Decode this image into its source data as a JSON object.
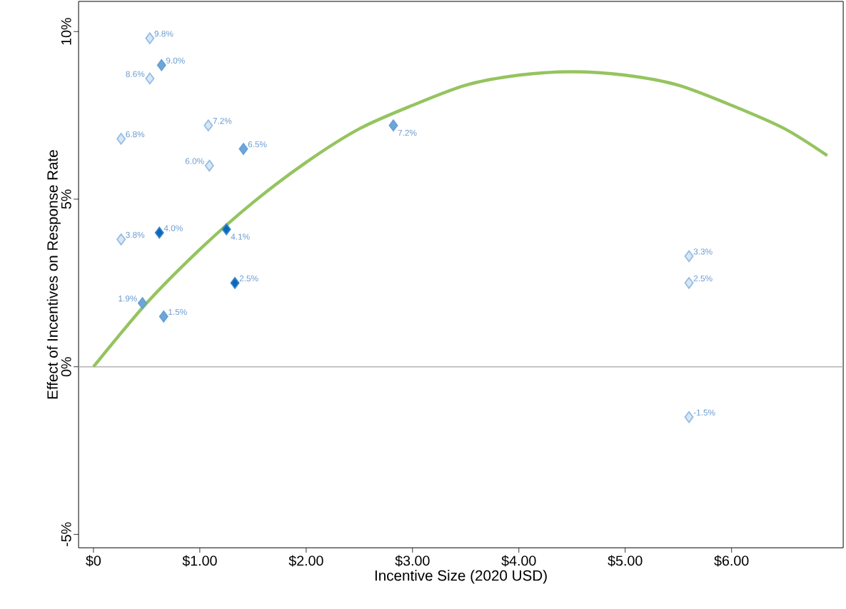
{
  "chart_data": {
    "type": "scatter",
    "xlabel": "Incentive Size (2020 USD)",
    "ylabel": "Effect of Incentives on Response Rate",
    "xlim": [
      -0.14,
      7.05
    ],
    "ylim": [
      -5.4,
      10.9
    ],
    "xticks": [
      {
        "value": 0,
        "label": "$0"
      },
      {
        "value": 1,
        "label": "$1.00"
      },
      {
        "value": 2,
        "label": "$2.00"
      },
      {
        "value": 3,
        "label": "$3.00"
      },
      {
        "value": 4,
        "label": "$4.00"
      },
      {
        "value": 5,
        "label": "$5.00"
      },
      {
        "value": 6,
        "label": "$6.00"
      }
    ],
    "yticks": [
      {
        "value": -5,
        "label": "-5%"
      },
      {
        "value": 0,
        "label": "0%"
      },
      {
        "value": 5,
        "label": "5%"
      },
      {
        "value": 10,
        "label": "10%"
      }
    ],
    "marker": "diamond",
    "ref_lines": [
      {
        "axis": "y",
        "value": 0,
        "color": "#b3b3b3"
      }
    ],
    "series": [
      {
        "color": "#d9e7f5",
        "x": [
          0.53,
          0.53,
          0.26,
          1.08,
          1.09,
          0.26,
          5.6,
          5.6,
          5.6
        ],
        "values": [
          9.8,
          8.6,
          6.8,
          7.2,
          6.0,
          3.8,
          3.3,
          2.5,
          -1.5
        ],
        "value_labels": [
          "9.8%",
          "8.6%",
          "6.8%",
          "7.2%",
          "6.0%",
          "3.8%",
          "3.3%",
          "2.5%",
          "-1.5%"
        ]
      },
      {
        "color": "#6fa6d8",
        "x": [
          0.64,
          1.41,
          2.82,
          0.46,
          0.66
        ],
        "values": [
          9.0,
          6.5,
          7.2,
          1.9,
          1.5
        ],
        "value_labels": [
          "9.0%",
          "6.5%",
          "7.2%",
          "1.9%",
          "1.5%"
        ]
      },
      {
        "color": "#0a68b8",
        "x": [
          0.62,
          1.25,
          1.33
        ],
        "values": [
          4.0,
          4.1,
          2.5
        ],
        "value_labels": [
          "4.0%",
          "4.1%",
          "2.5%"
        ]
      },
      {
        "type": "line",
        "marker": "none",
        "color": "#95c45f",
        "x": [
          0,
          0.5,
          1,
          1.5,
          2,
          2.5,
          3,
          3.5,
          4,
          4.5,
          5,
          5.5,
          6,
          6.5,
          6.9
        ],
        "values": [
          0,
          1.9,
          3.5,
          4.9,
          6.1,
          7.1,
          7.8,
          8.4,
          8.7,
          8.8,
          8.7,
          8.4,
          7.8,
          7.1,
          6.3
        ]
      }
    ]
  }
}
